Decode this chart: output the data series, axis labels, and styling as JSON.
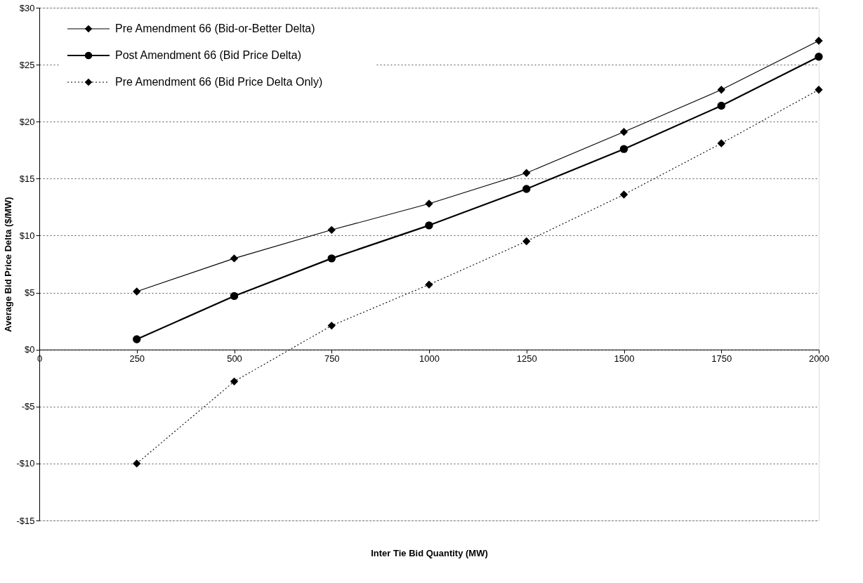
{
  "chart_data": {
    "type": "line",
    "xlabel": "Inter Tie Bid Quantity (MW)",
    "ylabel": "Average Bid Price Delta ($/MW)",
    "x": [
      250,
      500,
      750,
      1000,
      1250,
      1500,
      1750,
      2000
    ],
    "series": [
      {
        "name": "Pre Amendment 66 (Bid-or-Better Delta)",
        "color": "#000000",
        "marker": "diamond",
        "line_style": "solid",
        "values": [
          5.1,
          8.0,
          10.5,
          12.8,
          15.5,
          19.1,
          22.8,
          27.1
        ]
      },
      {
        "name": "Post Amendment 66 (Bid Price Delta)",
        "color": "#000000",
        "marker": "circle",
        "line_style": "solid",
        "values": [
          0.9,
          4.7,
          8.0,
          10.9,
          14.1,
          17.6,
          21.4,
          25.7
        ]
      },
      {
        "name": "Pre Amendment 66 (Bid Price Delta Only)",
        "color": "#000000",
        "marker": "diamond",
        "line_style": "dotted",
        "values": [
          -10.0,
          -2.8,
          2.1,
          5.7,
          9.5,
          13.6,
          18.1,
          22.8
        ]
      }
    ],
    "xlim": [
      0,
      2000
    ],
    "xticks": [
      0,
      250,
      500,
      750,
      1000,
      1250,
      1500,
      1750,
      2000
    ],
    "ylim": [
      -15,
      30
    ],
    "yticks": [
      {
        "value": -15,
        "label": "-$15"
      },
      {
        "value": -10,
        "label": "-$10"
      },
      {
        "value": -5,
        "label": "-$5"
      },
      {
        "value": 0,
        "label": "$0"
      },
      {
        "value": 5,
        "label": "$5"
      },
      {
        "value": 10,
        "label": "$10"
      },
      {
        "value": 15,
        "label": "$15"
      },
      {
        "value": 20,
        "label": "$20"
      },
      {
        "value": 25,
        "label": "$25"
      },
      {
        "value": 30,
        "label": "$30"
      }
    ],
    "grid": "y",
    "legend": "top left"
  }
}
